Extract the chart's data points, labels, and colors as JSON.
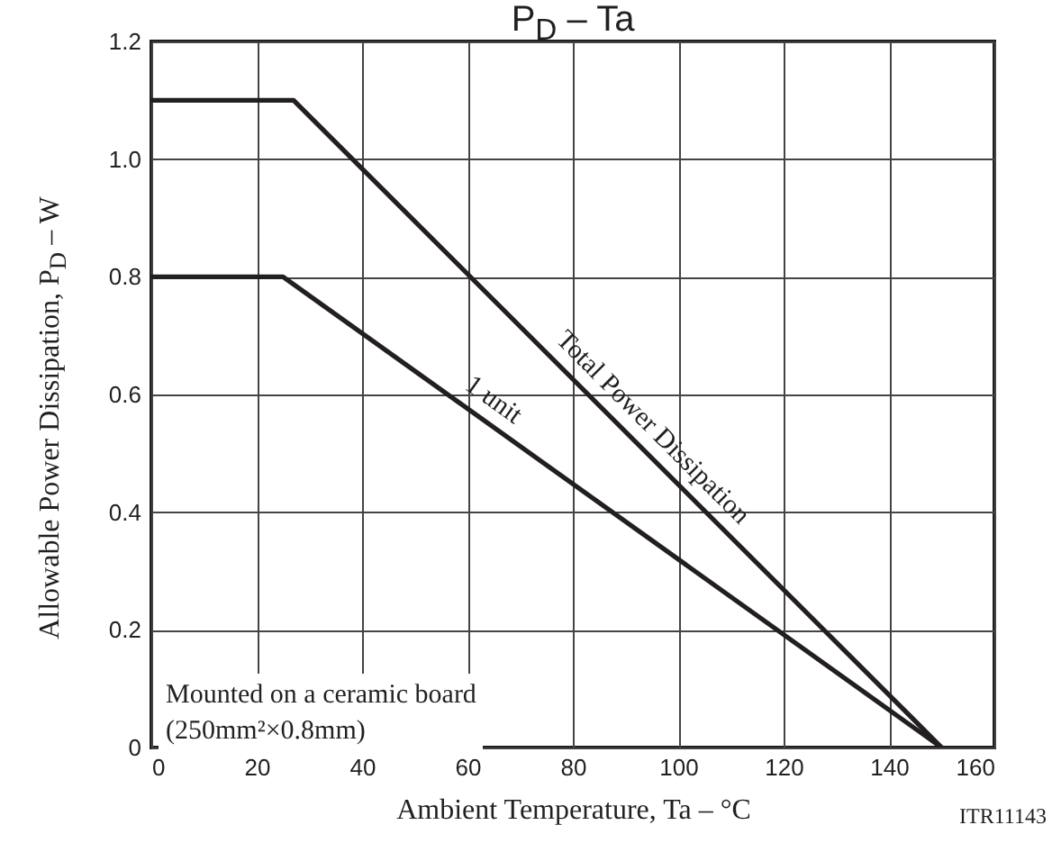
{
  "chart_data": {
    "type": "line",
    "title": "P$_{D}$ – Ta",
    "xlabel": "Ambient Temperature, Ta  –  °C",
    "ylabel": "Allowable Power Dissipation, P$_{D}$  –  W",
    "series": [
      {
        "name": "Total Power Dissipation",
        "color": "#231f20",
        "x": [
          0,
          27,
          150
        ],
        "values": [
          1.1,
          1.1,
          0
        ]
      },
      {
        "name": "1 unit",
        "color": "#231f20",
        "x": [
          0,
          25,
          150
        ],
        "values": [
          0.8,
          0.8,
          0
        ]
      }
    ],
    "xlim": [
      0,
      160
    ],
    "xticks": [
      0,
      20,
      40,
      60,
      80,
      100,
      120,
      140,
      160
    ],
    "ylim": [
      0,
      1.2
    ],
    "yticks": [
      0,
      0.2,
      0.4,
      0.6,
      0.8,
      {
        "value": 1,
        "label": "1.0"
      },
      1.2
    ],
    "grid": true,
    "annotations": [
      "Mounted on a ceramic board\n(250mm²×0.8mm)",
      "ITR11143"
    ]
  }
}
